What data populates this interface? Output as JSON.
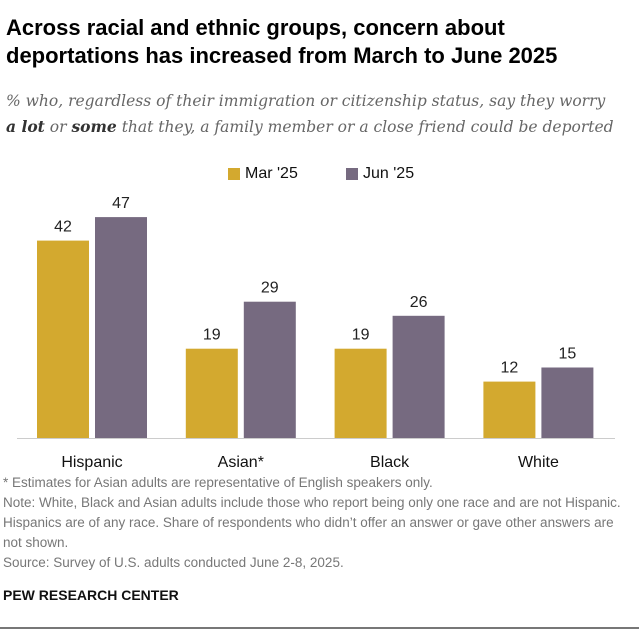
{
  "title": "Across racial and ethnic groups, concern about deportations has increased from March to June 2025",
  "subtitle": {
    "line1": "% who, regardless of their immigration or citizenship status, say they worry",
    "bold1": "a lot",
    "mid": " or ",
    "bold2": "some",
    "rest": " that they, a family member or a close friend could be deported"
  },
  "chart_data": {
    "type": "bar",
    "categories": [
      "Hispanic",
      "Asian*",
      "Black",
      "White"
    ],
    "series": [
      {
        "name": "Mar '25",
        "values": [
          42,
          19,
          19,
          12
        ],
        "color": "#d3a92f"
      },
      {
        "name": "Jun '25",
        "values": [
          47,
          29,
          26,
          15
        ],
        "color": "#766a80"
      }
    ],
    "ylim": [
      0,
      50
    ],
    "grid": false,
    "legend": "top-center",
    "data_labels": true
  },
  "notes": {
    "asterisk": "* Estimates for Asian adults are representative of English speakers only.",
    "note": "Note: White, Black and Asian adults include those who report being only one race and are not Hispanic. Hispanics are of any race. Share of respondents who didn’t offer an answer or gave other answers are not shown.",
    "source": "Source: Survey of U.S. adults conducted June 2-8, 2025."
  },
  "brand": "PEW RESEARCH CENTER"
}
